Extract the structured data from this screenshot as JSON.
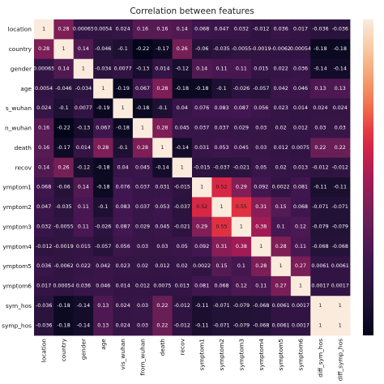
{
  "chart_data": {
    "type": "heatmap",
    "title": "Correlation between features",
    "labels": [
      "location",
      "country",
      "gender",
      "age",
      "vis_wuhan",
      "from_wuhan",
      "death",
      "recov",
      "symptom1",
      "symptom2",
      "symptom3",
      "symptom4",
      "symptom5",
      "symptom6",
      "diff_sym_hos",
      "diff_symp_hos"
    ],
    "ytick_labels": [
      "location",
      "country",
      "gender",
      "age",
      "s_wuhan",
      "n_wuhan",
      "death",
      "recov",
      "ymptom1",
      "ymptom2",
      "ymptom3",
      "ymptom4",
      "ymptom5",
      "ymptom6",
      "sym_hos",
      "symp_hos"
    ],
    "xtick_labels": [
      "location",
      "country",
      "gender",
      "age",
      "vis_wuhan",
      "from_wuhan",
      "death",
      "recov",
      "symptom1",
      "symptom2",
      "symptom3",
      "symptom4",
      "symptom5",
      "symptom6",
      "diff_sym_hos",
      "diff_symp_hos"
    ],
    "cell_labels": [
      [
        "1",
        "0.28",
        "0.00065",
        "0.0054",
        "0.024",
        "0.16",
        "0.16",
        "0.14",
        "0.068",
        "0.047",
        "0.032",
        "-0.012",
        "0.036",
        "0.017",
        "-0.036",
        "-0.036"
      ],
      [
        "0.28",
        "1",
        "0.14",
        "-0.046",
        "-0.1",
        "-0.22",
        "-0.17",
        "0.26",
        "-0.06",
        "-0.035",
        "-0.0055",
        "-0.0019",
        "-0.0062",
        "0.00054",
        "-0.18",
        "-0.18"
      ],
      [
        "0.00065",
        "0.14",
        "1",
        "-0.034",
        "0.0077",
        "-0.13",
        "0.014",
        "-0.12",
        "0.14",
        "0.11",
        "0.11",
        "0.015",
        "0.022",
        "0.036",
        "-0.14",
        "-0.14"
      ],
      [
        "0.0054",
        "-0.046",
        "-0.034",
        "1",
        "-0.19",
        "0.067",
        "0.28",
        "-0.18",
        "-0.18",
        "-0.1",
        "-0.026",
        "-0.057",
        "0.042",
        "0.046",
        "0.13",
        "0.13"
      ],
      [
        "0.024",
        "-0.1",
        "0.0077",
        "-0.19",
        "1",
        "-0.18",
        "-0.1",
        "0.04",
        "0.076",
        "0.083",
        "0.087",
        "0.056",
        "0.023",
        "0.014",
        "0.024",
        "0.024"
      ],
      [
        "0.16",
        "-0.22",
        "-0.13",
        "0.067",
        "-0.18",
        "1",
        "0.28",
        "0.045",
        "0.037",
        "0.037",
        "0.029",
        "0.03",
        "0.02",
        "0.012",
        "0.03",
        "0.03"
      ],
      [
        "0.16",
        "-0.17",
        "0.014",
        "0.28",
        "-0.1",
        "0.28",
        "1",
        "-0.14",
        "0.031",
        "0.053",
        "0.045",
        "0.03",
        "0.012",
        "0.0075",
        "0.22",
        "0.22"
      ],
      [
        "0.14",
        "0.26",
        "-0.12",
        "-0.18",
        "0.04",
        "0.045",
        "-0.14",
        "1",
        "-0.015",
        "-0.037",
        "-0.021",
        "0.05",
        "0.02",
        "0.013",
        "-0.012",
        "-0.012"
      ],
      [
        "0.068",
        "-0.06",
        "0.14",
        "-0.18",
        "0.076",
        "0.037",
        "0.031",
        "-0.015",
        "1",
        "0.52",
        "0.29",
        "0.092",
        "0.0022",
        "0.081",
        "-0.11",
        "-0.11"
      ],
      [
        "0.047",
        "-0.035",
        "0.11",
        "-0.1",
        "0.083",
        "0.037",
        "0.053",
        "-0.037",
        "0.52",
        "1",
        "0.55",
        "0.31",
        "0.15",
        "0.068",
        "-0.071",
        "-0.071"
      ],
      [
        "0.032",
        "-0.0055",
        "0.11",
        "-0.026",
        "0.087",
        "0.029",
        "0.045",
        "-0.021",
        "0.29",
        "0.55",
        "1",
        "0.38",
        "0.1",
        "0.12",
        "-0.079",
        "-0.079"
      ],
      [
        "-0.012",
        "-0.0019",
        "0.015",
        "-0.057",
        "0.056",
        "0.03",
        "0.03",
        "0.05",
        "0.092",
        "0.31",
        "0.38",
        "1",
        "0.28",
        "0.11",
        "-0.068",
        "-0.068"
      ],
      [
        "0.036",
        "-0.0062",
        "0.022",
        "0.042",
        "0.023",
        "0.02",
        "0.012",
        "0.02",
        "0.0022",
        "0.15",
        "0.1",
        "0.28",
        "1",
        "0.27",
        "0.0061",
        "0.0061"
      ],
      [
        "0.017",
        "0.00054",
        "0.036",
        "0.046",
        "0.014",
        "0.012",
        "0.0075",
        "0.013",
        "0.081",
        "0.068",
        "0.12",
        "0.11",
        "0.27",
        "1",
        "0.0017",
        "0.0017"
      ],
      [
        "-0.036",
        "-0.18",
        "-0.14",
        "0.13",
        "0.024",
        "0.03",
        "0.22",
        "-0.012",
        "-0.11",
        "-0.071",
        "-0.079",
        "-0.068",
        "0.0061",
        "0.0017",
        "1",
        "1"
      ],
      [
        "-0.036",
        "-0.18",
        "-0.14",
        "0.13",
        "0.024",
        "0.03",
        "0.22",
        "-0.012",
        "-0.11",
        "-0.071",
        "-0.079",
        "-0.068",
        "0.0061",
        "0.0017",
        "1",
        "1"
      ]
    ],
    "values": [
      [
        1,
        0.28,
        0.00065,
        0.0054,
        0.024,
        0.16,
        0.16,
        0.14,
        0.068,
        0.047,
        0.032,
        -0.012,
        0.036,
        0.017,
        -0.036,
        -0.036
      ],
      [
        0.28,
        1,
        0.14,
        -0.046,
        -0.1,
        -0.22,
        -0.17,
        0.26,
        -0.06,
        -0.035,
        -0.0055,
        -0.0019,
        -0.0062,
        0.00054,
        -0.18,
        -0.18
      ],
      [
        0.00065,
        0.14,
        1,
        -0.034,
        0.0077,
        -0.13,
        0.014,
        -0.12,
        0.14,
        0.11,
        0.11,
        0.015,
        0.022,
        0.036,
        -0.14,
        -0.14
      ],
      [
        0.0054,
        -0.046,
        -0.034,
        1,
        -0.19,
        0.067,
        0.28,
        -0.18,
        -0.18,
        -0.1,
        -0.026,
        -0.057,
        0.042,
        0.046,
        0.13,
        0.13
      ],
      [
        0.024,
        -0.1,
        0.0077,
        -0.19,
        1,
        -0.18,
        -0.1,
        0.04,
        0.076,
        0.083,
        0.087,
        0.056,
        0.023,
        0.014,
        0.024,
        0.024
      ],
      [
        0.16,
        -0.22,
        -0.13,
        0.067,
        -0.18,
        1,
        0.28,
        0.045,
        0.037,
        0.037,
        0.029,
        0.03,
        0.02,
        0.012,
        0.03,
        0.03
      ],
      [
        0.16,
        -0.17,
        0.014,
        0.28,
        -0.1,
        0.28,
        1,
        -0.14,
        0.031,
        0.053,
        0.045,
        0.03,
        0.012,
        0.0075,
        0.22,
        0.22
      ],
      [
        0.14,
        0.26,
        -0.12,
        -0.18,
        0.04,
        0.045,
        -0.14,
        1,
        -0.015,
        -0.037,
        -0.021,
        0.05,
        0.02,
        0.013,
        -0.012,
        -0.012
      ],
      [
        0.068,
        -0.06,
        0.14,
        -0.18,
        0.076,
        0.037,
        0.031,
        -0.015,
        1,
        0.52,
        0.29,
        0.092,
        0.0022,
        0.081,
        -0.11,
        -0.11
      ],
      [
        0.047,
        -0.035,
        0.11,
        -0.1,
        0.083,
        0.037,
        0.053,
        -0.037,
        0.52,
        1,
        0.55,
        0.31,
        0.15,
        0.068,
        -0.071,
        -0.071
      ],
      [
        0.032,
        -0.0055,
        0.11,
        -0.026,
        0.087,
        0.029,
        0.045,
        -0.021,
        0.29,
        0.55,
        1,
        0.38,
        0.1,
        0.12,
        -0.079,
        -0.079
      ],
      [
        -0.012,
        -0.0019,
        0.015,
        -0.057,
        0.056,
        0.03,
        0.03,
        0.05,
        0.092,
        0.31,
        0.38,
        1,
        0.28,
        0.11,
        -0.068,
        -0.068
      ],
      [
        0.036,
        -0.0062,
        0.022,
        0.042,
        0.023,
        0.02,
        0.012,
        0.02,
        0.0022,
        0.15,
        0.1,
        0.28,
        1,
        0.27,
        0.0061,
        0.0061
      ],
      [
        0.017,
        0.00054,
        0.036,
        0.046,
        0.014,
        0.012,
        0.0075,
        0.013,
        0.081,
        0.068,
        0.12,
        0.11,
        0.27,
        1,
        0.0017,
        0.0017
      ],
      [
        -0.036,
        -0.18,
        -0.14,
        0.13,
        0.024,
        0.03,
        0.22,
        -0.012,
        -0.11,
        -0.071,
        -0.079,
        -0.068,
        0.0061,
        0.0017,
        1,
        1
      ],
      [
        -0.036,
        -0.18,
        -0.14,
        0.13,
        0.024,
        0.03,
        0.22,
        -0.012,
        -0.11,
        -0.071,
        -0.079,
        -0.068,
        0.0061,
        0.0017,
        1,
        1
      ]
    ],
    "colorbar": {
      "range": [
        -0.22,
        1
      ],
      "colormap": "rocket",
      "placement": "right"
    },
    "grid": false,
    "annotated": true
  }
}
